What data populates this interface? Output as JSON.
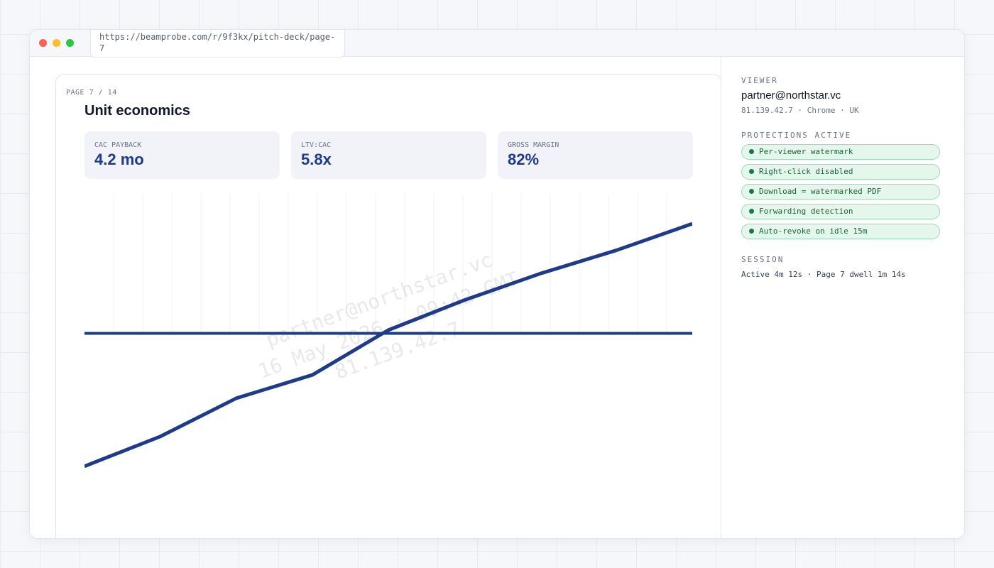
{
  "browser": {
    "url": "https://beamprobe.com/r/9f3kx/pitch-deck/page-7"
  },
  "slide": {
    "page_label": "PAGE 7 / 14",
    "title": "Unit economics",
    "kpis": [
      {
        "label": "CAC PAYBACK",
        "value": "4.2 mo"
      },
      {
        "label": "LTV:CAC",
        "value": "5.8x"
      },
      {
        "label": "GROSS MARGIN",
        "value": "82%"
      }
    ],
    "watermark": [
      "partner@northstar.vc",
      "16 May 2026 · 09:42 GMT",
      "81.139.42.7"
    ],
    "chart": {
      "type": "line",
      "values": [
        18,
        27,
        38.5,
        45.5,
        59,
        68,
        76,
        83,
        91
      ],
      "baseline": 58,
      "ylim": [
        0,
        100
      ],
      "color": "#1e3a8a"
    }
  },
  "sidebar": {
    "viewer_heading": "VIEWER",
    "viewer": "partner@northstar.vc",
    "viewer_meta": "81.139.42.7 · Chrome · UK",
    "protections_heading": "PROTECTIONS ACTIVE",
    "protections": [
      "Per-viewer watermark",
      "Right-click disabled",
      "Download = watermarked PDF",
      "Forwarding detection",
      "Auto-revoke on idle 15m"
    ],
    "session_heading": "SESSION",
    "session": "Active 4m 12s · Page 7 dwell 1m 14s"
  }
}
